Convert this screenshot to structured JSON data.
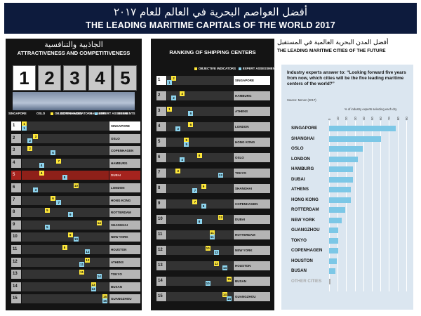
{
  "header": {
    "title_ar": "أفضل العواصم البحرية في العالم للعام ٢٠١٧",
    "title_en": "THE LEADING MARITIME CAPITALS OF THE WORLD 2017"
  },
  "colors": {
    "objective": "#ffe83a",
    "expert": "#8ed5ef",
    "highlight": "#a5231e",
    "navy": "#0d1b3d",
    "bar": "#7cc7e6"
  },
  "legend": {
    "objective": "OBJECTIVE INDICATORS",
    "expert": "EXPERT ASSESSMENTS"
  },
  "panel1": {
    "title_ar": "الجاذبية والتنافسية",
    "title_en": "ATTRACTIVENESS AND COMPETITIVENESS",
    "top5": [
      "1",
      "2",
      "3",
      "4",
      "5"
    ],
    "top5_cities": [
      "SINGAPORE",
      "OSLO",
      "COPENHAGEN",
      "HAMBURG",
      "DUBAI"
    ]
  },
  "panel2": {
    "title": "RANKING OF SHIPPING CENTERS"
  },
  "panel3": {
    "title_ar": "أفضل المدن البحرية العالمية في المستقبل",
    "title_en": "THE LEADING MARITIME CITIES OF THE FUTURE",
    "question": "Industry experts answer to: “Looking forward five years from now, which cities will be the five leading maritime centers of the world?”",
    "source": "Source: Menon (2017)",
    "axis_title": "% of industry experts selecting each city",
    "ticks": [
      "0",
      "10",
      "20",
      "30",
      "40",
      "50",
      "60",
      "70",
      "80",
      "90"
    ]
  },
  "chart_data": [
    {
      "type": "table",
      "title": "ATTRACTIVENESS AND COMPETITIVENESS",
      "columns": [
        "rank",
        "city",
        "objective_indicators",
        "expert_assessments"
      ],
      "rows": [
        {
          "rank": "1",
          "city": "SINGAPORE",
          "objective": "1",
          "expert": "1"
        },
        {
          "rank": "2",
          "city": "OSLO",
          "objective": "3",
          "expert": "2"
        },
        {
          "rank": "3",
          "city": "COPENHAGEN",
          "objective": "2",
          "expert": "6"
        },
        {
          "rank": "4",
          "city": "HAMBURG",
          "objective": "7",
          "expert": "4"
        },
        {
          "rank": "5",
          "city": "DUBAI",
          "objective": "4",
          "expert": "8"
        },
        {
          "rank": "6",
          "city": "LONDON",
          "objective": "10",
          "expert": "3"
        },
        {
          "rank": "7",
          "city": "HONG KONG",
          "objective": "6",
          "expert": "7"
        },
        {
          "rank": "8",
          "city": "ROTTERDAM",
          "objective": "5",
          "expert": "9"
        },
        {
          "rank": "9",
          "city": "SHANGHAI",
          "objective": "14",
          "expert": "5"
        },
        {
          "rank": "10",
          "city": "NEW YORK",
          "objective": "9",
          "expert": "10"
        },
        {
          "rank": "11",
          "city": "HOUSTON",
          "objective": "8",
          "expert": "12"
        },
        {
          "rank": "12",
          "city": "ATHENS",
          "objective": "12",
          "expert": "11"
        },
        {
          "rank": "13",
          "city": "TOKYO",
          "objective": "11",
          "expert": "14"
        },
        {
          "rank": "14",
          "city": "BUSAN",
          "objective": "13",
          "expert": "13"
        },
        {
          "rank": "15",
          "city": "GUANGZHOU",
          "objective": "15",
          "expert": "15"
        }
      ]
    },
    {
      "type": "table",
      "title": "RANKING OF SHIPPING CENTERS",
      "columns": [
        "rank",
        "city",
        "objective_indicators",
        "expert_assessments"
      ],
      "rows": [
        {
          "rank": "1",
          "city": "SINGAPORE",
          "objective": "2",
          "expert": "1"
        },
        {
          "rank": "2",
          "city": "HAMBURG",
          "objective": "4",
          "expert": "2"
        },
        {
          "rank": "3",
          "city": "ATHENS",
          "objective": "1",
          "expert": "6"
        },
        {
          "rank": "4",
          "city": "LONDON",
          "objective": "6",
          "expert": "3"
        },
        {
          "rank": "5",
          "city": "HONG KONG",
          "objective": "5",
          "expert": "5"
        },
        {
          "rank": "6",
          "city": "OSLO",
          "objective": "8",
          "expert": "4"
        },
        {
          "rank": "7",
          "city": "TOKYO",
          "objective": "3",
          "expert": "13"
        },
        {
          "rank": "8",
          "city": "SHANGHAI",
          "objective": "9",
          "expert": "7"
        },
        {
          "rank": "9",
          "city": "COPENHAGEN",
          "objective": "7",
          "expert": "9"
        },
        {
          "rank": "10",
          "city": "DUBAI",
          "objective": "13",
          "expert": "8"
        },
        {
          "rank": "11",
          "city": "ROTTERDAM",
          "objective": "11",
          "expert": "11"
        },
        {
          "rank": "12",
          "city": "NEW YORK",
          "objective": "10",
          "expert": "12"
        },
        {
          "rank": "13",
          "city": "HOUSTON",
          "objective": "12",
          "expert": "14"
        },
        {
          "rank": "14",
          "city": "BUSAN",
          "objective": "15",
          "expert": "10"
        },
        {
          "rank": "15",
          "city": "GUANGZHOU",
          "objective": "14",
          "expert": "15"
        }
      ]
    },
    {
      "type": "bar",
      "orientation": "horizontal",
      "title": "THE LEADING MARITIME CITIES OF THE FUTURE",
      "xlabel": "% of industry experts selecting each city",
      "xlim": [
        0,
        90
      ],
      "categories": [
        "SINGAPORE",
        "SHANGHAI",
        "OSLO",
        "LONDON",
        "HAMBURG",
        "DUBAI",
        "ATHENS",
        "HONG KONG",
        "ROTTERDAM",
        "NEW YORK",
        "GUANGZHOU",
        "TOKYO",
        "COPENHAGEN",
        "HOUSTON",
        "BUSAN",
        "OTHER CITIES"
      ],
      "values": [
        78,
        61,
        39,
        34,
        28,
        28,
        25,
        25,
        19,
        15,
        11,
        11,
        11,
        9,
        7,
        2
      ]
    }
  ]
}
